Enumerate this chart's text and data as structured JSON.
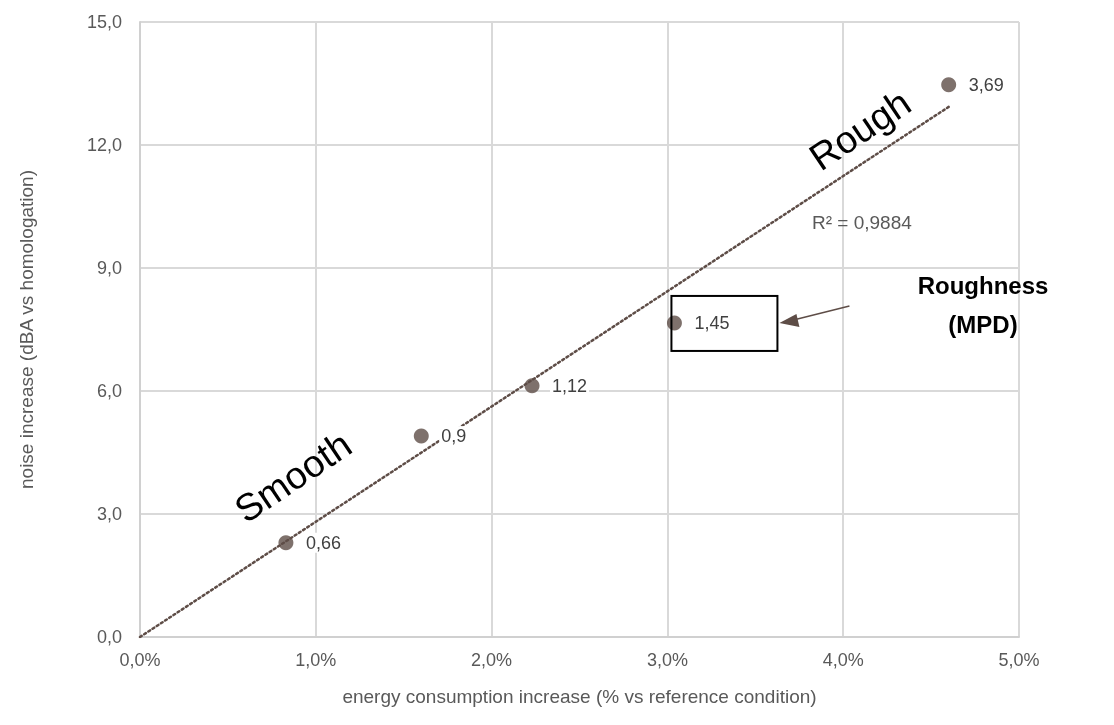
{
  "chart_data": {
    "type": "scatter",
    "xlabel": "energy consumption increase (% vs reference condition)",
    "ylabel": "noise increase (dBA vs homologation)",
    "xlim": [
      0,
      5
    ],
    "xticks": [
      {
        "value": 0,
        "label": "0,0%"
      },
      {
        "value": 1,
        "label": "1,0%"
      },
      {
        "value": 2,
        "label": "2,0%"
      },
      {
        "value": 3,
        "label": "3,0%"
      },
      {
        "value": 4,
        "label": "4,0%"
      },
      {
        "value": 5,
        "label": "5,0%"
      }
    ],
    "ylim": [
      0,
      15
    ],
    "yticks": [
      {
        "value": 0,
        "label": "0,0"
      },
      {
        "value": 3,
        "label": "3,0"
      },
      {
        "value": 6,
        "label": "6,0"
      },
      {
        "value": 9,
        "label": "9,0"
      },
      {
        "value": 12,
        "label": "12,0"
      },
      {
        "value": 15,
        "label": "15,0"
      }
    ],
    "grid": true,
    "series": [
      {
        "color": "#5e4d47",
        "marker": "circle",
        "x": [
          0.83,
          1.6,
          2.23,
          3.04,
          4.6
        ],
        "values": [
          2.3,
          4.9,
          6.13,
          7.66,
          13.47
        ]
      },
      {
        "type": "line",
        "color": "#5e4d47",
        "marker": "none",
        "line_style": "dotted",
        "x": [
          0,
          4.6
        ],
        "values": [
          0,
          12.93
        ]
      }
    ],
    "annotations": [
      "R² = 0,9884",
      "Rough",
      "Smooth",
      "Roughness (MPD)",
      {
        "text": "0,66",
        "x": 0.83,
        "y": 2.3
      },
      {
        "text": "0,9",
        "x": 1.6,
        "y": 4.9
      },
      {
        "text": "1,12",
        "x": 2.23,
        "y": 6.13
      },
      {
        "text": "1,45",
        "x": 3.04,
        "y": 7.66
      },
      {
        "text": "3,69",
        "x": 4.6,
        "y": 13.47
      }
    ]
  }
}
